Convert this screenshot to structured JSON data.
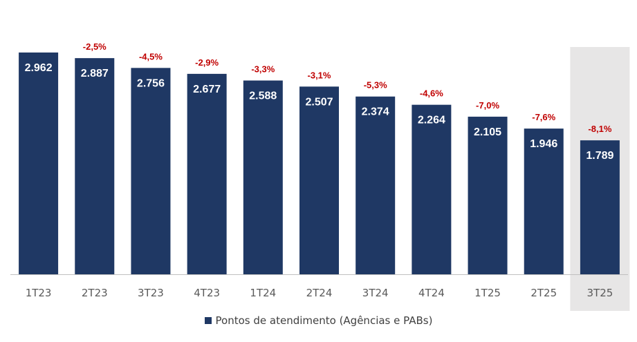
{
  "chart_data": {
    "type": "bar",
    "categories": [
      "1T23",
      "2T23",
      "3T23",
      "4T23",
      "1T24",
      "2T24",
      "3T24",
      "4T24",
      "1T25",
      "2T25",
      "3T25"
    ],
    "values": [
      2962,
      2887,
      2756,
      2677,
      2588,
      2507,
      2374,
      2264,
      2105,
      1946,
      1789
    ],
    "value_labels": [
      "2.962",
      "2.887",
      "2.756",
      "2.677",
      "2.588",
      "2.507",
      "2.374",
      "2.264",
      "2.105",
      "1.946",
      "1.789"
    ],
    "variation_labels": [
      "",
      "-2,5%",
      "-4,5%",
      "-2,9%",
      "-3,3%",
      "-3,1%",
      "-5,3%",
      "-4,6%",
      "-7,0%",
      "-7,6%",
      "-8,1%"
    ],
    "highlighted_category": "3T25",
    "series": [
      {
        "name": "Pontos de atendimento (Agências e PABs)",
        "values": [
          2962,
          2887,
          2756,
          2677,
          2588,
          2507,
          2374,
          2264,
          2105,
          1946,
          1789
        ]
      }
    ],
    "ylim": [
      0,
      2962
    ],
    "legend_position": "bottom",
    "grid": false,
    "title": "",
    "xlabel": "",
    "ylabel": ""
  },
  "legend": {
    "label": "Pontos de atendimento (Agências e PABs)"
  },
  "colors": {
    "bar": "#1f3864",
    "variation_text": "#c00000",
    "highlight_band": "#e7e6e6",
    "axis": "#bfbfbf",
    "tick_text": "#595959",
    "label_text": "#ffffff"
  }
}
